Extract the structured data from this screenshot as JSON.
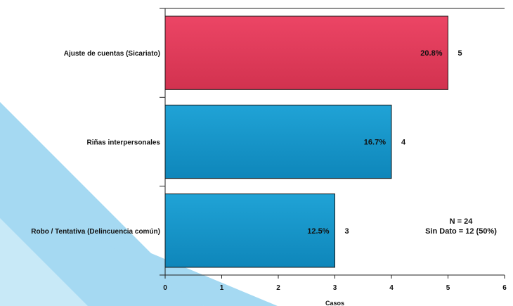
{
  "chart_data": {
    "type": "bar",
    "orientation": "horizontal",
    "categories": [
      "Ajuste de cuentas (Sicariato)",
      "Riñas interpersonales",
      "Robo / Tentativa (Delincuencia común)"
    ],
    "values": [
      5,
      4,
      3
    ],
    "percent_labels": [
      "20.8%",
      "16.7%",
      "12.5%"
    ],
    "value_labels": [
      "5",
      "4",
      "3"
    ],
    "bar_colors": [
      "#d93a5a",
      "#1593c8",
      "#1593c8"
    ],
    "xlabel": "Casos",
    "ylabel": "",
    "xlim": [
      0,
      6
    ],
    "x_ticks": [
      "0",
      "1",
      "2",
      "3",
      "4",
      "5",
      "6"
    ],
    "grid": false,
    "annotations": [
      "N = 24",
      "Sin Dato = 12 (50%)"
    ]
  }
}
